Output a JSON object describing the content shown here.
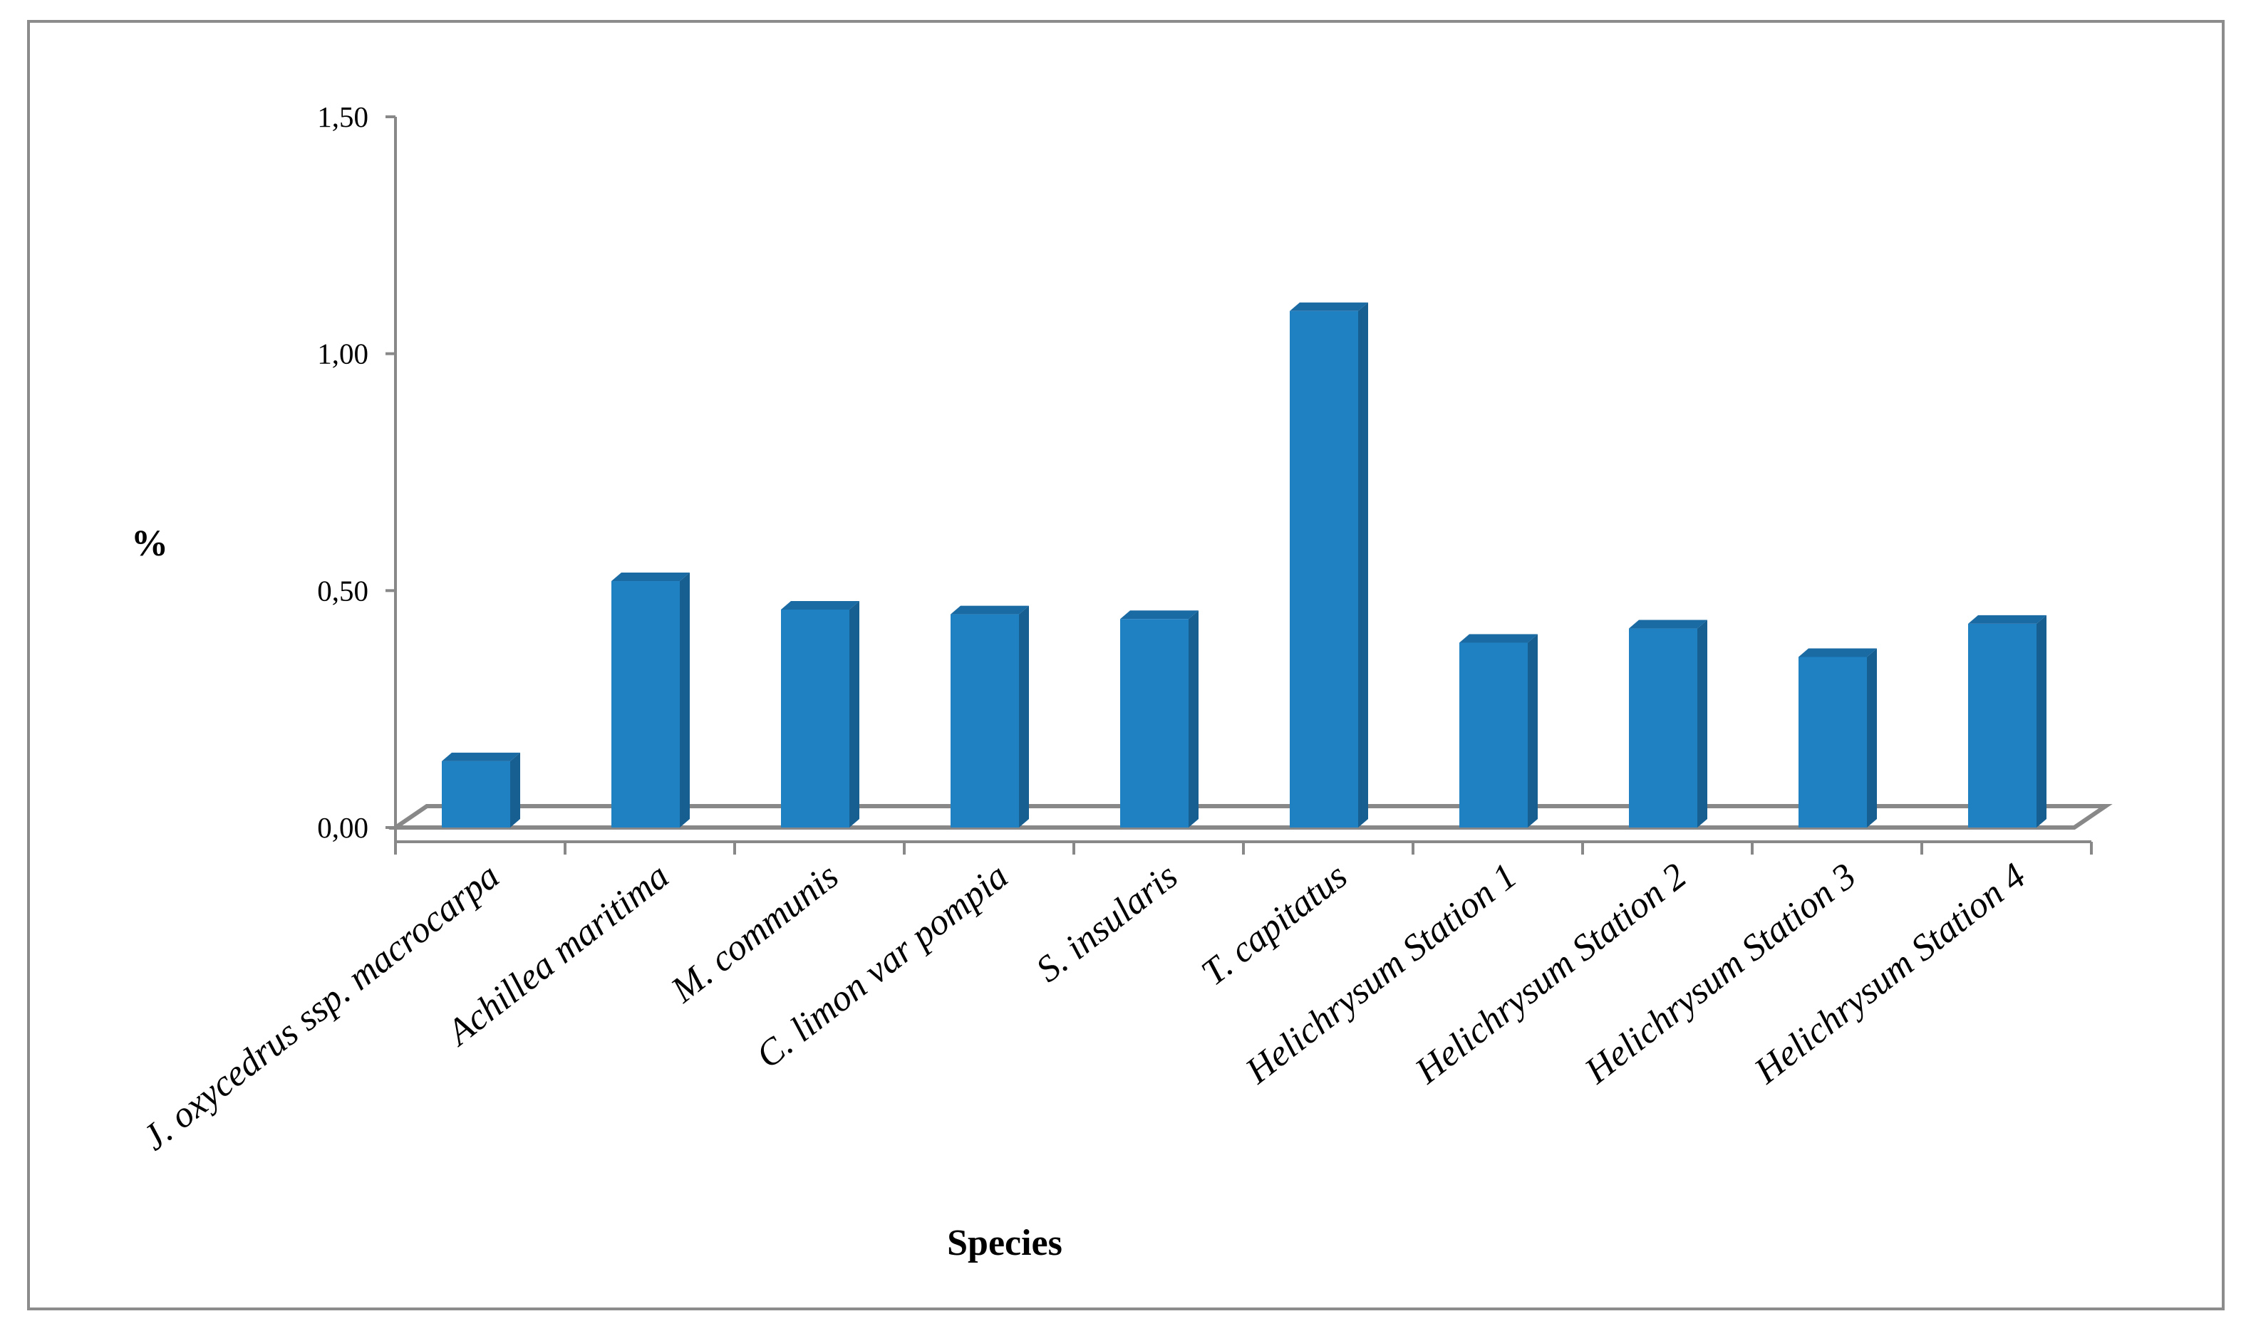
{
  "chart_data": {
    "type": "bar",
    "title": "",
    "xlabel": "Species",
    "ylabel": "%",
    "ylim": [
      0,
      1.5
    ],
    "y_ticks": [
      "0,00",
      "0,50",
      "1,00",
      "1,50"
    ],
    "y_tick_values": [
      0,
      0.5,
      1.0,
      1.5
    ],
    "categories": [
      "J. oxycedrus ssp. macrocarpa",
      "Achillea maritima",
      "M. communis",
      "C. limon var pompia",
      "S. insularis",
      "T. capitatus",
      "Helichrysum Station 1",
      "Helichrysum Station 2",
      "Helichrysum Station 3",
      "Helichrysum Station 4"
    ],
    "values": [
      0.14,
      0.52,
      0.46,
      0.45,
      0.44,
      1.09,
      0.39,
      0.42,
      0.36,
      0.43
    ],
    "colors": {
      "bar_front": "#1f80c2",
      "bar_side": "#175f91",
      "bar_top": "#1a6aa3",
      "axis": "#888888",
      "border": "#8c8c8c"
    },
    "grid": false,
    "legend": "none"
  }
}
